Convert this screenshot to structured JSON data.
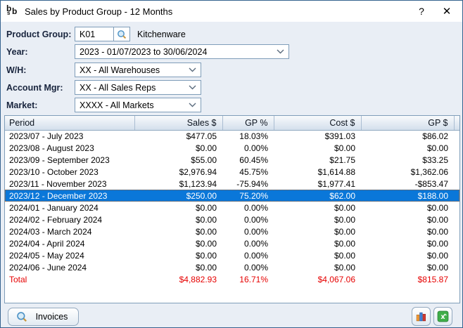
{
  "window": {
    "title": "Sales by Product Group - 12 Months",
    "logo": {
      "b1": "b",
      "s": "s",
      "b2": "b"
    },
    "help_label": "?",
    "close_label": "✕"
  },
  "form": {
    "product_group": {
      "label": "Product Group:",
      "value": "K01",
      "description": "Kitchenware"
    },
    "year": {
      "label": "Year:",
      "value": "2023 - 01/07/2023 to 30/06/2024"
    },
    "warehouse": {
      "label": "W/H:",
      "value": "XX - All Warehouses"
    },
    "account_mgr": {
      "label": "Account Mgr:",
      "value": "XX - All Sales Reps"
    },
    "market": {
      "label": "Market:",
      "value": "XXXX - All Markets"
    }
  },
  "table": {
    "columns": [
      "Period",
      "Sales $",
      "GP %",
      "Cost $",
      "GP $"
    ],
    "selected_index": 5,
    "rows": [
      {
        "period": "2023/07 - July 2023",
        "sales": "$477.05",
        "gp_pct": "18.03%",
        "cost": "$391.03",
        "gp": "$86.02"
      },
      {
        "period": "2023/08 - August 2023",
        "sales": "$0.00",
        "gp_pct": "0.00%",
        "cost": "$0.00",
        "gp": "$0.00"
      },
      {
        "period": "2023/09 - September 2023",
        "sales": "$55.00",
        "gp_pct": "60.45%",
        "cost": "$21.75",
        "gp": "$33.25"
      },
      {
        "period": "2023/10 - October 2023",
        "sales": "$2,976.94",
        "gp_pct": "45.75%",
        "cost": "$1,614.88",
        "gp": "$1,362.06"
      },
      {
        "period": "2023/11 - November 2023",
        "sales": "$1,123.94",
        "gp_pct": "-75.94%",
        "cost": "$1,977.41",
        "gp": "-$853.47"
      },
      {
        "period": "2023/12 - December 2023",
        "sales": "$250.00",
        "gp_pct": "75.20%",
        "cost": "$62.00",
        "gp": "$188.00"
      },
      {
        "period": "2024/01 - January 2024",
        "sales": "$0.00",
        "gp_pct": "0.00%",
        "cost": "$0.00",
        "gp": "$0.00"
      },
      {
        "period": "2024/02 - February 2024",
        "sales": "$0.00",
        "gp_pct": "0.00%",
        "cost": "$0.00",
        "gp": "$0.00"
      },
      {
        "period": "2024/03 - March 2024",
        "sales": "$0.00",
        "gp_pct": "0.00%",
        "cost": "$0.00",
        "gp": "$0.00"
      },
      {
        "period": "2024/04 - April 2024",
        "sales": "$0.00",
        "gp_pct": "0.00%",
        "cost": "$0.00",
        "gp": "$0.00"
      },
      {
        "period": "2024/05 - May 2024",
        "sales": "$0.00",
        "gp_pct": "0.00%",
        "cost": "$0.00",
        "gp": "$0.00"
      },
      {
        "period": "2024/06 - June 2024",
        "sales": "$0.00",
        "gp_pct": "0.00%",
        "cost": "$0.00",
        "gp": "$0.00"
      }
    ],
    "total_row": {
      "period": "Total",
      "sales": "$4,882.93",
      "gp_pct": "16.71%",
      "cost": "$4,067.06",
      "gp": "$815.87"
    }
  },
  "footer": {
    "invoices_label": "Invoices"
  },
  "colors": {
    "selection_bg": "#0a77d9",
    "selection_text": "#ffffff",
    "total_text": "#e60000"
  }
}
